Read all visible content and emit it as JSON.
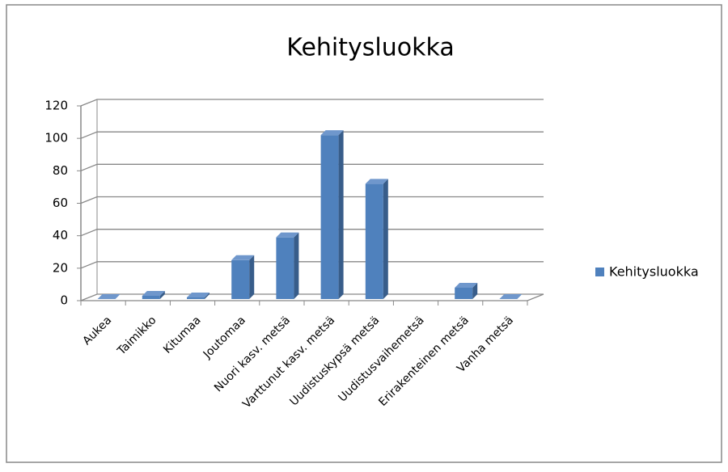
{
  "chart_data": {
    "type": "bar",
    "title": "Kehitysluokka",
    "categories": [
      "Aukea",
      "Taimikko",
      "Kitumaa",
      "Joutomaa",
      "Nuori kasv. metsä",
      "Varttunut kasv. metsä",
      "Uudistuskypsä metsä",
      "Uudistusvaihemetsä",
      "Erirakenteinen metsä",
      "Vanha metsä"
    ],
    "series": [
      {
        "name": "Kehitysluokka",
        "color": "#4f81bd",
        "values": [
          0,
          2,
          1,
          24,
          38,
          101,
          71,
          null,
          7,
          0
        ]
      }
    ],
    "ylim": [
      0,
      120
    ],
    "yticks": [
      0,
      20,
      40,
      60,
      80,
      100,
      120
    ],
    "grid": true,
    "legend": "right"
  }
}
